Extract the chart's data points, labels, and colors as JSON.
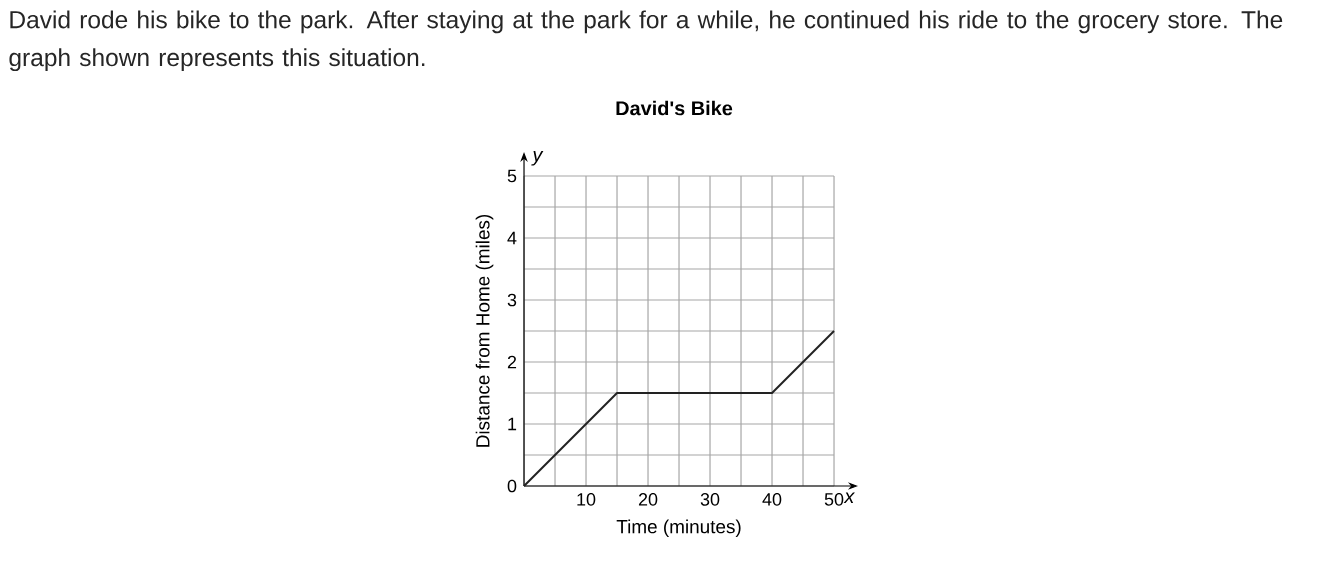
{
  "chart_data": {
    "type": "line",
    "subtitle": "David rode his bike to the park. After staying at the park for a while, he continued his ride to the grocery store. The graph shown represents this situation.",
    "title": "David's Bike",
    "xlabel": "Time (minutes)",
    "ylabel": "Distance from Home (miles)",
    "annotations": [
      "y",
      "x"
    ],
    "x": [
      0,
      15,
      40,
      50
    ],
    "values": [
      0,
      1.5,
      1.5,
      2.5
    ],
    "color": "#222222",
    "xlim": [
      0,
      50
    ],
    "ylim": [
      0,
      5
    ],
    "xticks": [
      {
        "value": 0,
        "label": null
      },
      {
        "value": 5,
        "label": null
      },
      10,
      {
        "value": 15,
        "label": null
      },
      20,
      {
        "value": 25,
        "label": null
      },
      30,
      {
        "value": 35,
        "label": null
      },
      40,
      {
        "value": 45,
        "label": null
      },
      50
    ],
    "yticks": [
      0,
      {
        "value": 0.5,
        "label": null
      },
      1,
      {
        "value": 1.5,
        "label": null
      },
      2,
      {
        "value": 2.5,
        "label": null
      },
      3,
      {
        "value": 3.5,
        "label": null
      },
      4,
      {
        "value": 4.5,
        "label": null
      },
      5
    ],
    "grid": true
  }
}
